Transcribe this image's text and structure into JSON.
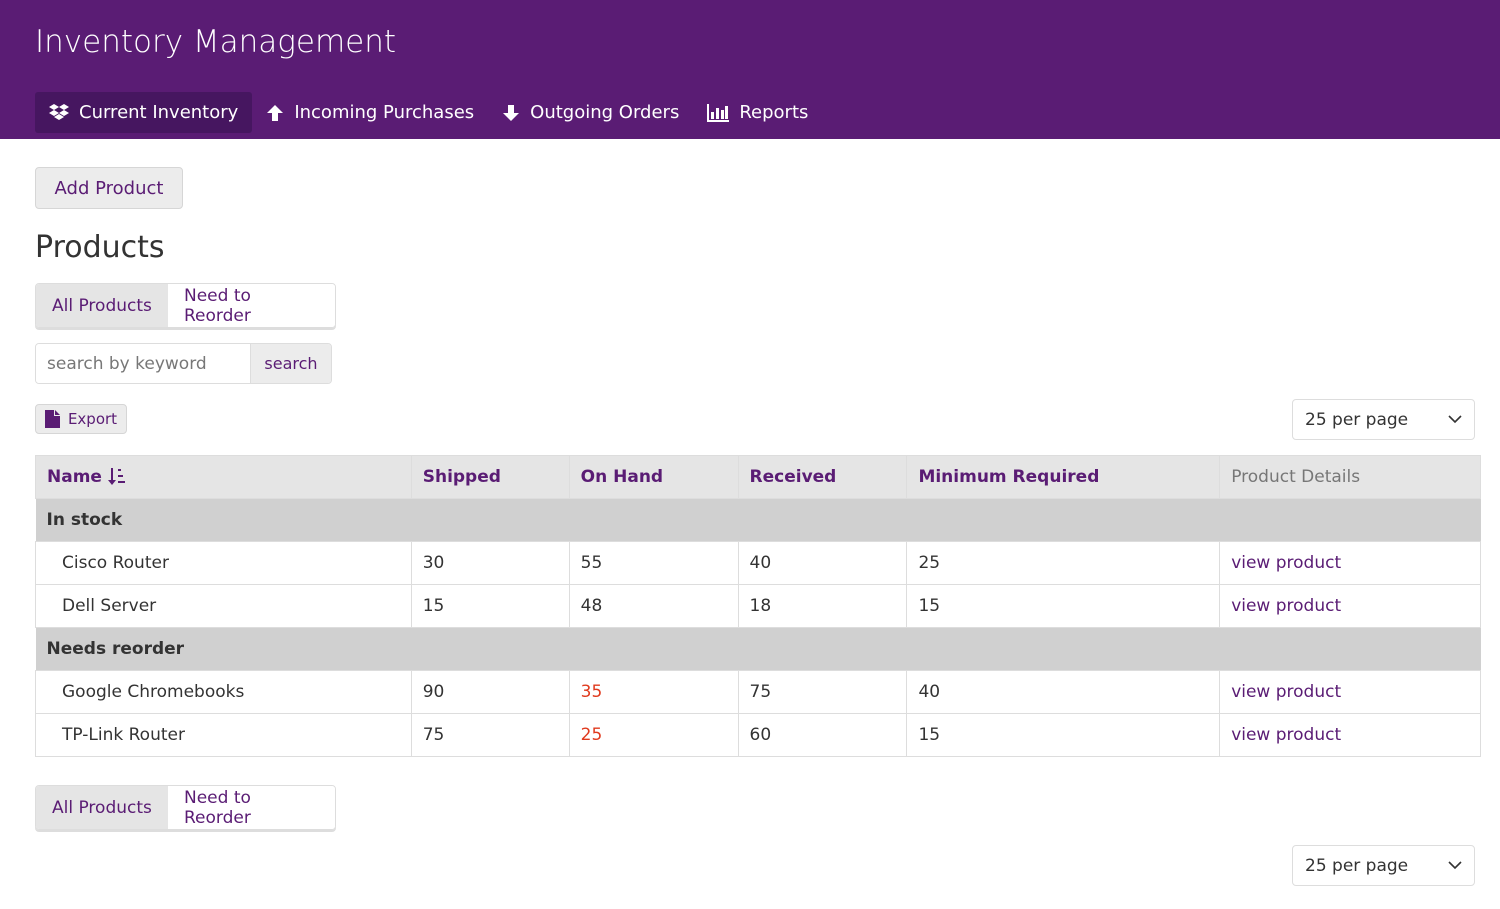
{
  "app": {
    "title": "Inventory Management"
  },
  "nav": [
    {
      "label": "Current Inventory",
      "icon": "dropbox-icon",
      "active": true
    },
    {
      "label": "Incoming Purchases",
      "icon": "arrow-up-icon"
    },
    {
      "label": "Outgoing Orders",
      "icon": "arrow-down-icon"
    },
    {
      "label": "Reports",
      "icon": "bar-chart-icon"
    }
  ],
  "actions": {
    "add_product": "Add Product",
    "export": "Export"
  },
  "section_title": "Products",
  "filters": {
    "all": "All Products",
    "reorder": "Need to Reorder"
  },
  "search": {
    "placeholder": "search by keyword",
    "button": "search"
  },
  "per_page": "25 per page",
  "table": {
    "headers": [
      "Name",
      "Shipped",
      "On Hand",
      "Received",
      "Minimum Required",
      "Product Details"
    ],
    "groups": [
      {
        "label": "In stock",
        "rows": [
          [
            "Cisco Router",
            "30",
            "55",
            "40",
            "25",
            "view product"
          ],
          [
            "Dell Server",
            "15",
            "48",
            "18",
            "15",
            "view product"
          ]
        ]
      },
      {
        "label": "Needs reorder",
        "rows": [
          [
            "Google Chromebooks",
            "90",
            "35",
            "75",
            "40",
            "view product"
          ],
          [
            "TP-Link Router",
            "75",
            "25",
            "60",
            "15",
            "view product"
          ]
        ]
      }
    ]
  },
  "colors": {
    "brand": "#5a1c74",
    "low_stock": "#e03a1e"
  }
}
